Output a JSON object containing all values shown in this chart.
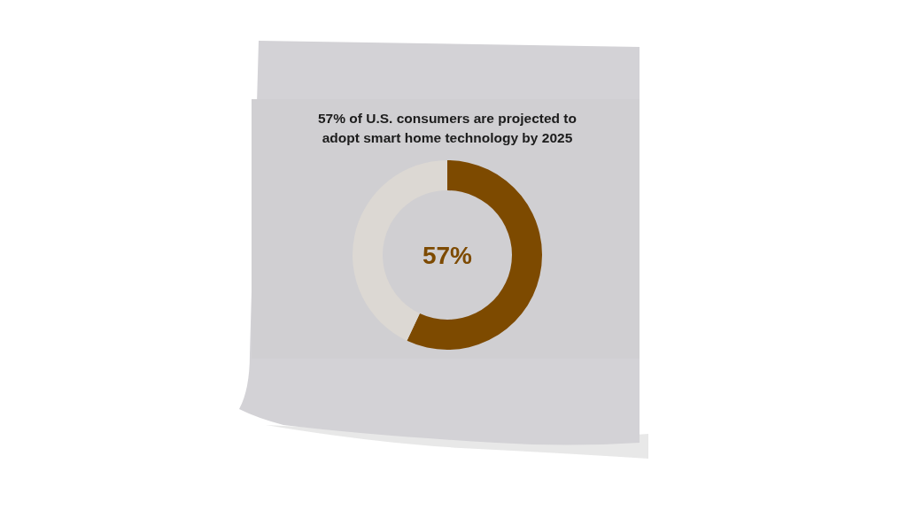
{
  "chart_data": {
    "type": "donut",
    "title": "57% of U.S. consumers are projected to adopt smart home technology by 2025",
    "categories": [
      null,
      null
    ],
    "values": [
      57,
      43
    ],
    "colors": [
      "#7d4a00",
      "#dcd8d3"
    ],
    "annotations": [
      "57%"
    ]
  }
}
